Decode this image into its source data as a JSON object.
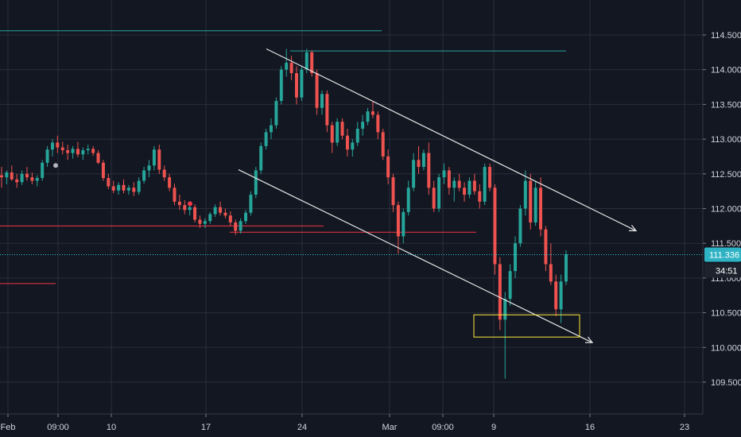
{
  "chart_data": {
    "type": "candlestick",
    "y_axis_ticks": [
      "114.500",
      "114.000",
      "113.500",
      "113.000",
      "112.500",
      "112.000",
      "111.500",
      "111.000",
      "110.500",
      "110.000",
      "109.500"
    ],
    "x_axis_ticks": [
      "Feb",
      "09:00",
      "10",
      "17",
      "24",
      "Mar",
      "09:00",
      "9",
      "16",
      "23"
    ],
    "ylim": [
      109.2,
      114.8
    ],
    "current_price": "111.336",
    "countdown": "34:51",
    "grid": true,
    "candles": [
      [
        112.48,
        112.6,
        112.3,
        112.45
      ],
      [
        112.45,
        112.55,
        112.35,
        112.52
      ],
      [
        112.52,
        112.62,
        112.4,
        112.42
      ],
      [
        112.42,
        112.5,
        112.3,
        112.38
      ],
      [
        112.38,
        112.55,
        112.34,
        112.5
      ],
      [
        112.5,
        112.6,
        112.4,
        112.45
      ],
      [
        112.45,
        112.52,
        112.35,
        112.4
      ],
      [
        112.4,
        112.48,
        112.32,
        112.44
      ],
      [
        112.44,
        112.7,
        112.4,
        112.66
      ],
      [
        112.66,
        112.9,
        112.6,
        112.85
      ],
      [
        112.85,
        113.0,
        112.75,
        112.95
      ],
      [
        112.95,
        113.05,
        112.8,
        112.88
      ],
      [
        112.88,
        112.96,
        112.78,
        112.84
      ],
      [
        112.84,
        112.92,
        112.7,
        112.8
      ],
      [
        112.8,
        112.9,
        112.72,
        112.86
      ],
      [
        112.86,
        112.96,
        112.74,
        112.78
      ],
      [
        112.78,
        112.88,
        112.7,
        112.84
      ],
      [
        112.84,
        112.92,
        112.78,
        112.86
      ],
      [
        112.86,
        112.9,
        112.76,
        112.8
      ],
      [
        112.8,
        112.84,
        112.64,
        112.66
      ],
      [
        112.66,
        112.7,
        112.4,
        112.44
      ],
      [
        112.44,
        112.5,
        112.28,
        112.32
      ],
      [
        112.32,
        112.4,
        112.22,
        112.26
      ],
      [
        112.26,
        112.38,
        112.2,
        112.34
      ],
      [
        112.34,
        112.42,
        112.22,
        112.26
      ],
      [
        112.26,
        112.34,
        112.2,
        112.3
      ],
      [
        112.3,
        112.38,
        112.18,
        112.24
      ],
      [
        112.24,
        112.45,
        112.2,
        112.4
      ],
      [
        112.4,
        112.6,
        112.36,
        112.55
      ],
      [
        112.55,
        112.7,
        112.45,
        112.62
      ],
      [
        112.62,
        112.9,
        112.55,
        112.85
      ],
      [
        112.85,
        112.92,
        112.5,
        112.56
      ],
      [
        112.56,
        112.62,
        112.4,
        112.45
      ],
      [
        112.45,
        112.5,
        112.25,
        112.3
      ],
      [
        112.3,
        112.36,
        112.05,
        112.1
      ],
      [
        112.1,
        112.2,
        111.98,
        112.05
      ],
      [
        112.05,
        112.12,
        111.92,
        111.98
      ],
      [
        111.98,
        112.08,
        111.9,
        112.02
      ],
      [
        112.02,
        112.06,
        111.8,
        111.84
      ],
      [
        111.84,
        111.9,
        111.72,
        111.78
      ],
      [
        111.78,
        111.86,
        111.72,
        111.82
      ],
      [
        111.82,
        111.95,
        111.78,
        111.92
      ],
      [
        111.92,
        112.06,
        111.88,
        112.02
      ],
      [
        112.02,
        112.1,
        111.9,
        111.94
      ],
      [
        111.94,
        112.0,
        111.86,
        111.9
      ],
      [
        111.9,
        111.96,
        111.75,
        111.8
      ],
      [
        111.8,
        111.84,
        111.62,
        111.68
      ],
      [
        111.68,
        111.86,
        111.64,
        111.82
      ],
      [
        111.82,
        111.98,
        111.78,
        111.94
      ],
      [
        111.94,
        112.25,
        111.9,
        112.2
      ],
      [
        112.2,
        112.6,
        112.15,
        112.55
      ],
      [
        112.55,
        112.95,
        112.5,
        112.9
      ],
      [
        112.9,
        113.15,
        112.85,
        113.1
      ],
      [
        113.1,
        113.3,
        113.0,
        113.2
      ],
      [
        113.2,
        113.6,
        113.15,
        113.55
      ],
      [
        113.55,
        114.05,
        113.5,
        114.0
      ],
      [
        114.0,
        114.3,
        113.9,
        114.1
      ],
      [
        114.1,
        114.2,
        113.85,
        113.95
      ],
      [
        113.95,
        114.05,
        113.5,
        113.6
      ],
      [
        113.6,
        114.05,
        113.55,
        114.0
      ],
      [
        114.0,
        114.3,
        113.95,
        114.25
      ],
      [
        114.25,
        114.28,
        113.9,
        113.95
      ],
      [
        113.95,
        114.0,
        113.35,
        113.45
      ],
      [
        113.45,
        113.7,
        113.35,
        113.65
      ],
      [
        113.65,
        113.7,
        113.1,
        113.2
      ],
      [
        113.2,
        113.25,
        112.8,
        112.95
      ],
      [
        112.95,
        113.3,
        112.9,
        113.25
      ],
      [
        113.25,
        113.3,
        113.0,
        113.05
      ],
      [
        113.05,
        113.15,
        112.75,
        112.85
      ],
      [
        112.85,
        113.0,
        112.75,
        112.95
      ],
      [
        112.95,
        113.25,
        112.9,
        113.15
      ],
      [
        113.15,
        113.35,
        113.05,
        113.25
      ],
      [
        113.25,
        113.45,
        113.2,
        113.4
      ],
      [
        113.4,
        113.55,
        113.3,
        113.35
      ],
      [
        113.35,
        113.4,
        113.0,
        113.1
      ],
      [
        113.1,
        113.15,
        112.7,
        112.75
      ],
      [
        112.75,
        112.85,
        112.35,
        112.45
      ],
      [
        112.45,
        112.5,
        111.95,
        112.05
      ],
      [
        112.05,
        112.1,
        111.35,
        111.6
      ],
      [
        111.6,
        112.0,
        111.5,
        111.95
      ],
      [
        111.95,
        112.4,
        111.9,
        112.3
      ],
      [
        112.3,
        112.8,
        112.25,
        112.7
      ],
      [
        112.7,
        112.9,
        112.5,
        112.6
      ],
      [
        112.6,
        112.85,
        112.55,
        112.8
      ],
      [
        112.8,
        112.95,
        112.2,
        112.3
      ],
      [
        112.3,
        112.4,
        111.95,
        112.0
      ],
      [
        112.0,
        112.5,
        111.95,
        112.45
      ],
      [
        112.45,
        112.65,
        112.35,
        112.55
      ],
      [
        112.55,
        112.6,
        112.2,
        112.3
      ],
      [
        112.3,
        112.45,
        112.1,
        112.4
      ],
      [
        112.4,
        112.5,
        112.25,
        112.3
      ],
      [
        112.3,
        112.38,
        112.1,
        112.2
      ],
      [
        112.2,
        112.45,
        112.15,
        112.4
      ],
      [
        112.4,
        112.5,
        112.2,
        112.25
      ],
      [
        112.25,
        112.35,
        112.0,
        112.1
      ],
      [
        112.1,
        112.65,
        112.05,
        112.6
      ],
      [
        112.6,
        112.65,
        112.25,
        112.3
      ],
      [
        112.3,
        112.35,
        111.05,
        111.2
      ],
      [
        111.2,
        111.3,
        110.25,
        110.4
      ],
      [
        110.4,
        110.8,
        109.55,
        110.7
      ],
      [
        110.7,
        111.2,
        110.6,
        111.1
      ],
      [
        111.1,
        111.6,
        111.0,
        111.5
      ],
      [
        111.5,
        112.05,
        111.45,
        112.0
      ],
      [
        112.0,
        112.55,
        111.9,
        112.4
      ],
      [
        112.4,
        112.5,
        111.7,
        111.8
      ],
      [
        111.8,
        112.4,
        111.75,
        112.3
      ],
      [
        112.3,
        112.45,
        111.6,
        111.7
      ],
      [
        111.7,
        111.75,
        111.1,
        111.2
      ],
      [
        111.2,
        111.5,
        110.9,
        110.95
      ],
      [
        110.95,
        111.05,
        110.45,
        110.55
      ],
      [
        110.55,
        111.05,
        110.35,
        110.95
      ],
      [
        110.95,
        111.4,
        110.9,
        111.34
      ]
    ]
  },
  "horizontal_lines": [
    {
      "price": 114.56,
      "x0": 0.0,
      "x1": 480.0,
      "color": "#26a69a"
    },
    {
      "price": 114.27,
      "x0": 365.0,
      "x1": 712.0,
      "color": "#26a69a"
    },
    {
      "price": 111.75,
      "x0": 0.0,
      "x1": 407.0,
      "color": "#f23645"
    },
    {
      "price": 111.66,
      "x0": 289.0,
      "x1": 599.0,
      "color": "#f23645"
    },
    {
      "price": 110.92,
      "x0": 0.0,
      "x1": 70.0,
      "color": "#f23645"
    }
  ],
  "trendlines": [
    {
      "a": [
        335.0,
        114.3
      ],
      "b": [
        800.0,
        111.68
      ]
    },
    {
      "a": [
        300.0,
        112.56
      ],
      "b": [
        745.0,
        110.07
      ]
    }
  ],
  "box": {
    "p1": 110.47,
    "p2": 110.15,
    "x0": 596.0,
    "x1": 729.0,
    "color": "#ffeb3b"
  },
  "colors": {
    "bg": "#131722",
    "grid": "#2a2e39",
    "up": "#26a69a",
    "down": "#ef5350",
    "current_line": "#26c6da",
    "current_tag": "#2fb3c4",
    "text": "#d1d4dc"
  }
}
